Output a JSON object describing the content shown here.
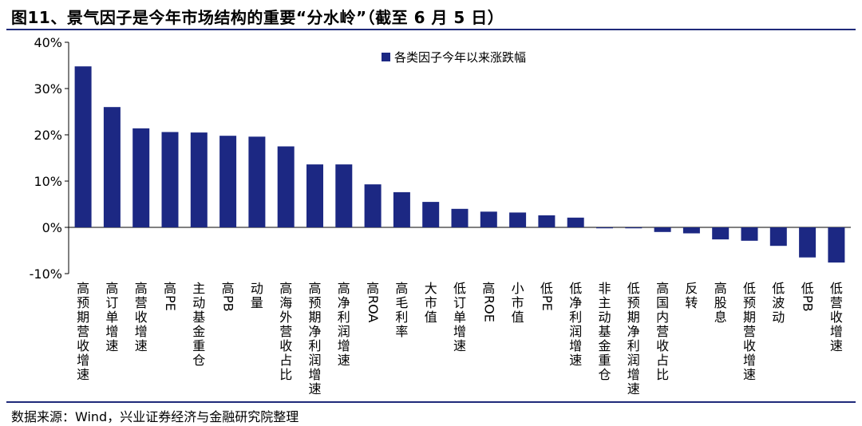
{
  "figure": {
    "title": "图11、景气因子是今年市场结构的重要“分水岭”（截至 6 月 5 日）",
    "source": "数据来源：Wind，兴业证券经济与金融研究院整理"
  },
  "chart_data": {
    "type": "bar",
    "ylim": [
      -10,
      40
    ],
    "yticks": [
      -10,
      0,
      10,
      20,
      30,
      40
    ],
    "ytick_labels": [
      "-10%",
      "0%",
      "10%",
      "20%",
      "30%",
      "40%"
    ],
    "grid": false,
    "legend_position": "top-right",
    "bar_color": "#1c2883",
    "series": [
      {
        "name": "各类因子今年以来涨跌幅",
        "values": [
          34.8,
          26.0,
          21.4,
          20.6,
          20.5,
          19.8,
          19.6,
          17.5,
          13.6,
          13.6,
          9.3,
          7.6,
          5.5,
          4.0,
          3.4,
          3.2,
          2.6,
          2.1,
          -0.2,
          -0.2,
          -1.0,
          -1.3,
          -2.6,
          -2.9,
          -4.0,
          -6.5,
          -7.6
        ]
      }
    ],
    "categories": [
      "高预期营收增速",
      "高订单增速",
      "高营收增速",
      "高PE",
      "主动基金重仓",
      "高PB",
      "动量",
      "高海外营收占比",
      "高预期净利润增速",
      "高净利润增速",
      "高ROA",
      "高毛利率",
      "大市值",
      "低订单增速",
      "高ROE",
      "小市值",
      "低PE",
      "低净利润增速",
      "非主动基金重仓",
      "低预期净利润增速",
      "高国内营收占比",
      "反转",
      "高股息",
      "低预期营收增速",
      "低波动",
      "低PB",
      "低营收增速"
    ],
    "xlabel": "",
    "ylabel": ""
  }
}
